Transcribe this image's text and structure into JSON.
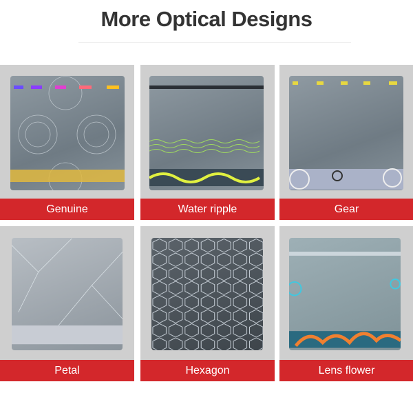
{
  "title": "More Optical Designs",
  "designs": [
    {
      "label": "Genuine"
    },
    {
      "label": "Water ripple"
    },
    {
      "label": "Gear"
    },
    {
      "label": "Petal"
    },
    {
      "label": "Hexagon"
    },
    {
      "label": "Lens flower"
    }
  ],
  "colors": {
    "label_background": "#d3272b",
    "card_background": "#cfcfcf",
    "title": "#333333"
  }
}
